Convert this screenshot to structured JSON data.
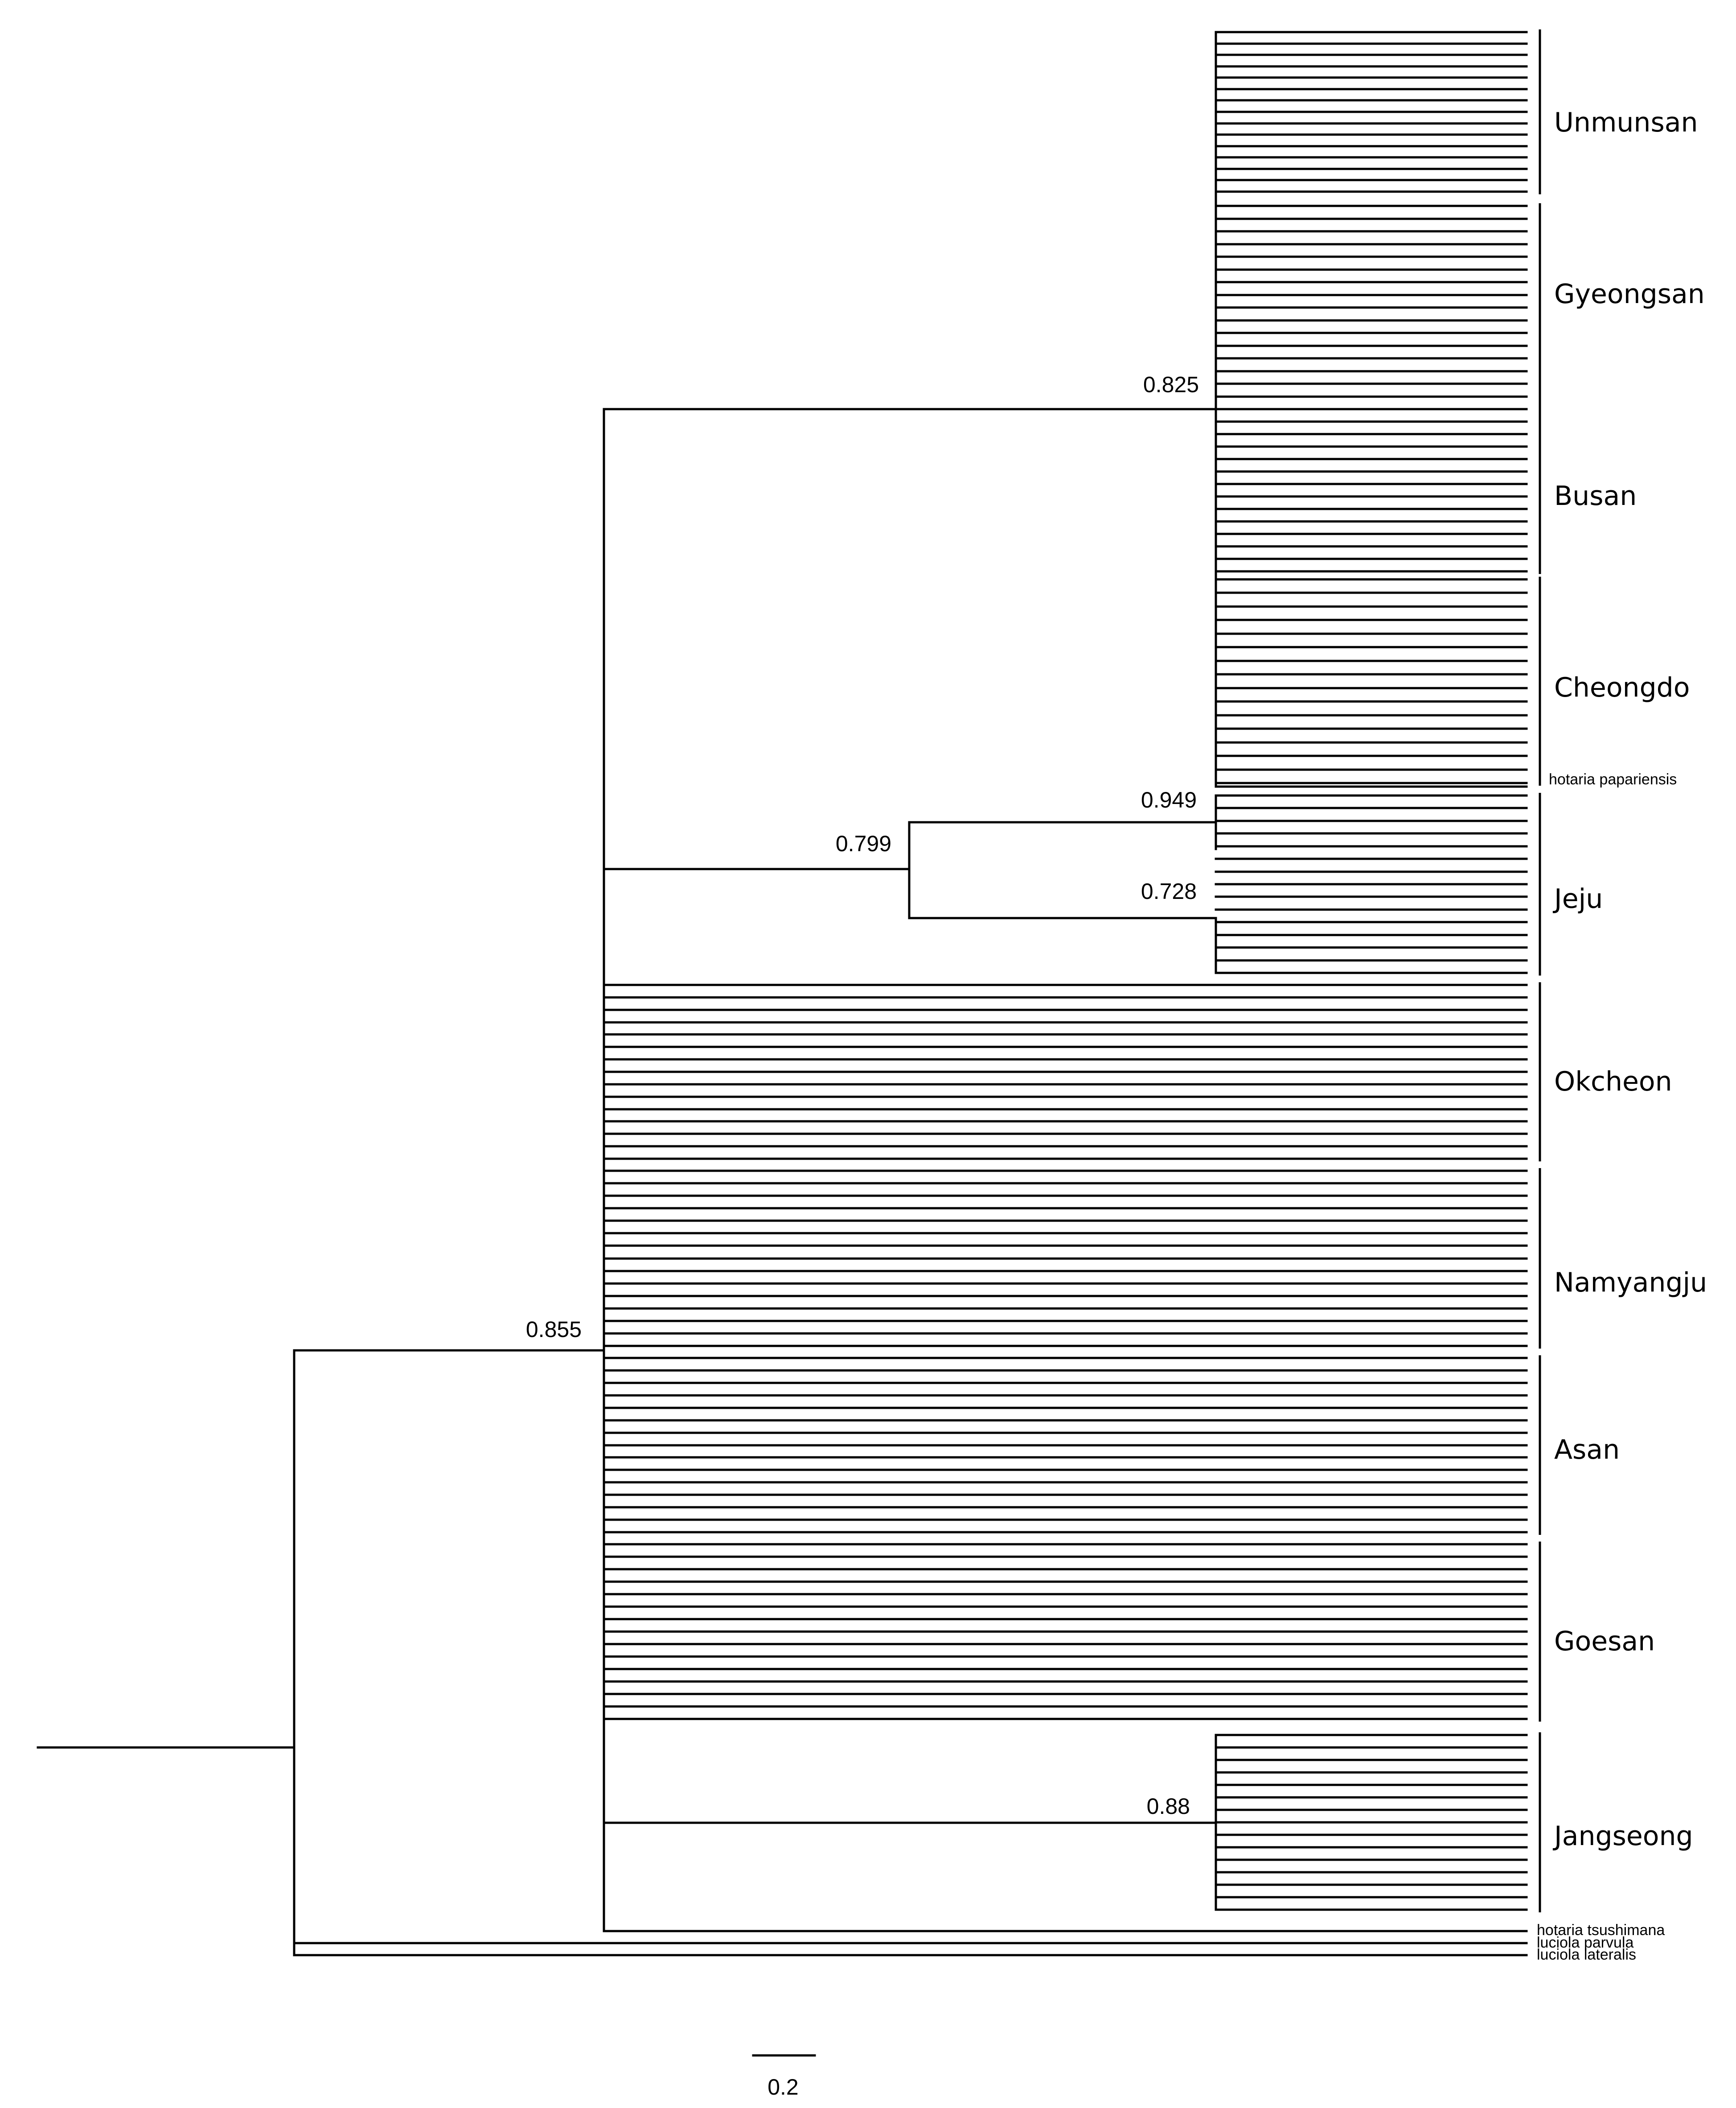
{
  "tree": {
    "support_values": {
      "n825": "0.825",
      "n949": "0.949",
      "n799": "0.799",
      "n728": "0.728",
      "n855": "0.855",
      "n88": "0.88"
    },
    "groups": [
      {
        "label": "Unmunsan",
        "tips": 15
      },
      {
        "label": "Gyeongsan",
        "tips": 16
      },
      {
        "label": "Busan",
        "tips": 15
      },
      {
        "label": "Cheongdo",
        "tips": 16
      },
      {
        "label": "Jeju",
        "tips": 15
      },
      {
        "label": "Okcheon",
        "tips": 15
      },
      {
        "label": "Namyangju",
        "tips": 15
      },
      {
        "label": "Asan",
        "tips": 15
      },
      {
        "label": "Goesan",
        "tips": 15
      },
      {
        "label": "Jangseong",
        "tips": 15
      }
    ],
    "single_taxa": {
      "papariensis": "hotaria papariensis",
      "tsushimana": "hotaria tsushimana",
      "parvula": "luciola parvula",
      "lateralis": "luciola lateralis"
    },
    "scale_bar": "0.2"
  }
}
